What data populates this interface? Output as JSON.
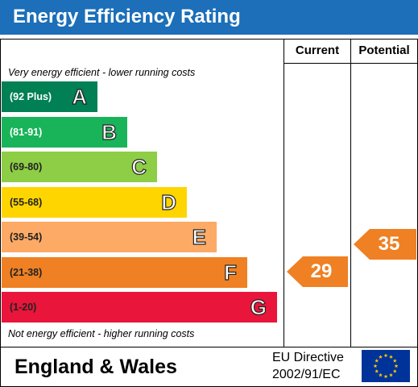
{
  "header": {
    "title": "Energy Efficiency Rating"
  },
  "columns": {
    "current": "Current",
    "potential": "Potential"
  },
  "notes": {
    "top": "Very energy efficient - lower running costs",
    "bottom": "Not energy efficient - higher running costs"
  },
  "chart_data": {
    "type": "bar",
    "title": "Energy Efficiency Rating",
    "bands": [
      {
        "range": "(92 Plus)",
        "letter": "A",
        "color": "#008054",
        "text_color": "#ffffff"
      },
      {
        "range": "(81-91)",
        "letter": "B",
        "color": "#19b459",
        "text_color": "#ffffff"
      },
      {
        "range": "(69-80)",
        "letter": "C",
        "color": "#8dce46",
        "text_color": "#222222"
      },
      {
        "range": "(55-68)",
        "letter": "D",
        "color": "#ffd500",
        "text_color": "#222222"
      },
      {
        "range": "(39-54)",
        "letter": "E",
        "color": "#fcaa65",
        "text_color": "#222222"
      },
      {
        "range": "(21-38)",
        "letter": "F",
        "color": "#ef8023",
        "text_color": "#222222"
      },
      {
        "range": "(1-20)",
        "letter": "G",
        "color": "#e9153b",
        "text_color": "#222222"
      }
    ],
    "current": {
      "value": 29,
      "band": "F",
      "color": "#ef8023"
    },
    "potential": {
      "value": 35,
      "band": "F",
      "color": "#ef8023"
    }
  },
  "footer": {
    "country": "England & Wales",
    "directive_line1": "EU Directive",
    "directive_line2": "2002/91/EC",
    "flag_color": "#003399",
    "star_color": "#ffcc00"
  }
}
